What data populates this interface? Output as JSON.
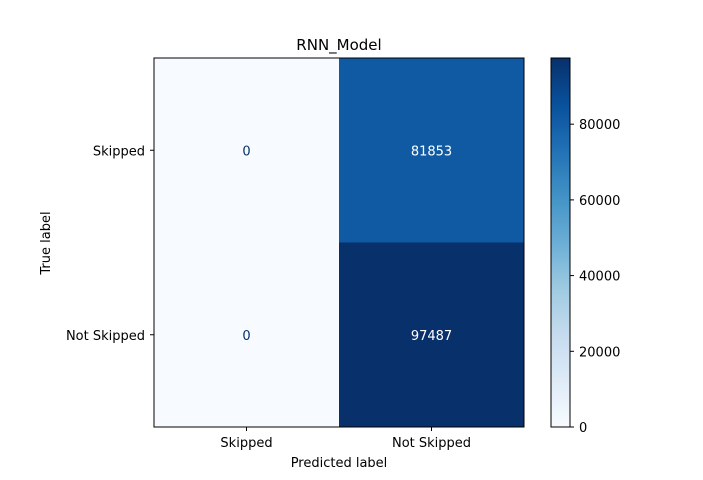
{
  "chart_data": {
    "type": "heatmap",
    "title": "RNN_Model",
    "xlabel": "Predicted label",
    "ylabel": "True label",
    "x_categories": [
      "Skipped",
      "Not Skipped"
    ],
    "y_categories": [
      "Skipped",
      "Not Skipped"
    ],
    "matrix": [
      [
        0,
        81853
      ],
      [
        0,
        97487
      ]
    ],
    "colormap": "Blues",
    "colorbar": {
      "ticks": [
        0,
        20000,
        40000,
        60000,
        80000
      ],
      "tick_labels": [
        "0",
        "20000",
        "40000",
        "60000",
        "80000"
      ],
      "range": [
        0,
        97487
      ]
    },
    "colors": {
      "low": "#f7fbff",
      "high": "#08306b"
    }
  }
}
